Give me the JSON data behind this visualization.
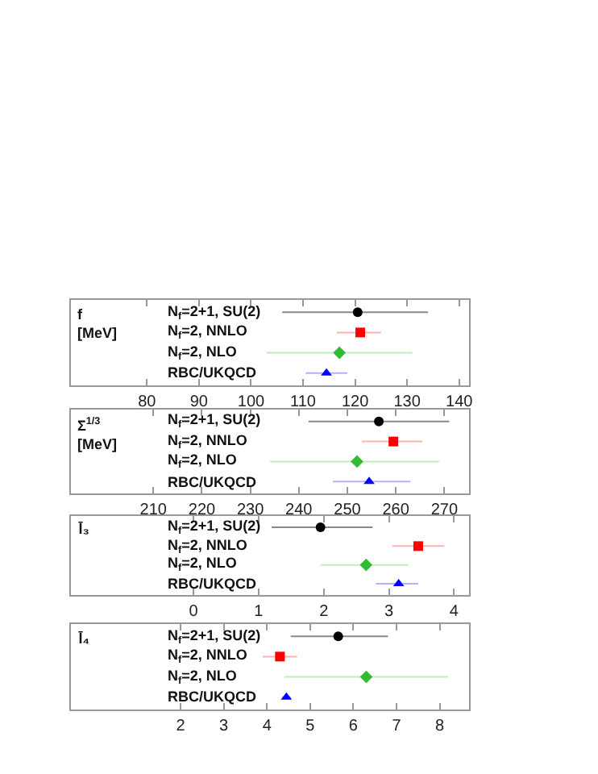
{
  "chart_data": [
    {
      "type": "scatter",
      "orientation": "horizontal",
      "ylabel": "f\n[MeV]",
      "categories": [
        "N$_{f}$=2+1, SU(2)",
        "N$_{f}$=2, NNLO",
        "N$_{f}$=2, NLO",
        "RBC/UKQCD"
      ],
      "series": [
        {
          "color": "#000000",
          "marker": "circle",
          "values": [
            120.5,
            null,
            null,
            null
          ],
          "errors": [
            [
              106,
              134
            ],
            null,
            null,
            null
          ]
        },
        {
          "color": "#ff0000",
          "marker": "square",
          "values": [
            null,
            121,
            null,
            null
          ],
          "errors": [
            null,
            [
              116.5,
              125
            ],
            null,
            null
          ]
        },
        {
          "color": "#33bb33",
          "marker": "diamond",
          "values": [
            null,
            null,
            117,
            null
          ],
          "errors": [
            null,
            null,
            [
              103,
              131
            ],
            null
          ]
        },
        {
          "color": "#0000ff",
          "marker": "triangle",
          "values": [
            null,
            null,
            null,
            114.5
          ],
          "errors": [
            null,
            null,
            null,
            [
              110.5,
              118.5
            ]
          ]
        }
      ],
      "xlim": [
        65.4,
        141.9
      ],
      "xticks": [
        80,
        90,
        100,
        110,
        120,
        130,
        140
      ],
      "grid": false
    },
    {
      "type": "scatter",
      "orientation": "horizontal",
      "ylabel": "Σ$^{1/3}$\n[MeV]",
      "categories": [
        "N$_{f}$=2+1, SU(2)",
        "N$_{f}$=2, NNLO",
        "N$_{f}$=2, NLO",
        "RBC/UKQCD"
      ],
      "series": [
        {
          "color": "#000000",
          "marker": "circle",
          "values": [
            256.5,
            null,
            null,
            null
          ],
          "errors": [
            [
              242,
              271
            ],
            null,
            null,
            null
          ]
        },
        {
          "color": "#ff0000",
          "marker": "square",
          "values": [
            null,
            259.5,
            null,
            null
          ],
          "errors": [
            null,
            [
              253,
              265.5
            ],
            null,
            null
          ]
        },
        {
          "color": "#33bb33",
          "marker": "diamond",
          "values": [
            null,
            null,
            252,
            null
          ],
          "errors": [
            null,
            null,
            [
              234,
              269
            ],
            null
          ]
        },
        {
          "color": "#0000ff",
          "marker": "triangle",
          "values": [
            null,
            null,
            null,
            254.5
          ],
          "errors": [
            null,
            null,
            null,
            [
              247,
              263
            ]
          ]
        }
      ],
      "xlim": [
        193,
        275.1
      ],
      "xticks": [
        210,
        220,
        230,
        240,
        250,
        260,
        270
      ],
      "grid": false
    },
    {
      "type": "scatter",
      "orientation": "horizontal",
      "ylabel": "l̄₃",
      "categories": [
        "N$_{f}$=2+1, SU(2)",
        "N$_{f}$=2, NNLO",
        "N$_{f}$=2, NLO",
        "RBC/UKQCD"
      ],
      "series": [
        {
          "color": "#000000",
          "marker": "circle",
          "values": [
            1.95,
            null,
            null,
            null
          ],
          "errors": [
            [
              1.2,
              2.75
            ],
            null,
            null,
            null
          ]
        },
        {
          "color": "#ff0000",
          "marker": "square",
          "values": [
            null,
            3.45,
            null,
            null
          ],
          "errors": [
            null,
            [
              3.05,
              3.85
            ],
            null,
            null
          ]
        },
        {
          "color": "#33bb33",
          "marker": "diamond",
          "values": [
            null,
            null,
            2.65,
            null
          ],
          "errors": [
            null,
            null,
            [
              1.95,
              3.3
            ],
            null
          ]
        },
        {
          "color": "#0000ff",
          "marker": "triangle",
          "values": [
            null,
            null,
            null,
            3.15
          ],
          "errors": [
            null,
            null,
            null,
            [
              2.8,
              3.45
            ]
          ]
        }
      ],
      "xlim": [
        -1.88,
        4.23
      ],
      "xticks": [
        0,
        1,
        2,
        3,
        4
      ],
      "grid": false
    },
    {
      "type": "scatter",
      "orientation": "horizontal",
      "ylabel": "l̄₄",
      "categories": [
        "N$_{f}$=2+1, SU(2)",
        "N$_{f}$=2, NNLO",
        "N$_{f}$=2, NLO",
        "RBC/UKQCD"
      ],
      "series": [
        {
          "color": "#000000",
          "marker": "circle",
          "values": [
            5.65,
            null,
            null,
            null
          ],
          "errors": [
            [
              4.55,
              6.8
            ],
            null,
            null,
            null
          ]
        },
        {
          "color": "#ff0000",
          "marker": "square",
          "values": [
            null,
            4.3,
            null,
            null
          ],
          "errors": [
            null,
            [
              3.9,
              4.7
            ],
            null,
            null
          ]
        },
        {
          "color": "#33bb33",
          "marker": "diamond",
          "values": [
            null,
            null,
            6.3,
            null
          ],
          "errors": [
            null,
            null,
            [
              4.4,
              8.2
            ],
            null
          ]
        },
        {
          "color": "#0000ff",
          "marker": "triangle",
          "values": [
            null,
            null,
            null,
            4.45
          ],
          "errors": [
            null,
            null,
            null,
            [
              4.35,
              4.55
            ]
          ]
        }
      ],
      "xlim": [
        -0.54,
        8.68
      ],
      "xticks": [
        2,
        3,
        4,
        5,
        6,
        7,
        8
      ],
      "grid": false
    }
  ]
}
